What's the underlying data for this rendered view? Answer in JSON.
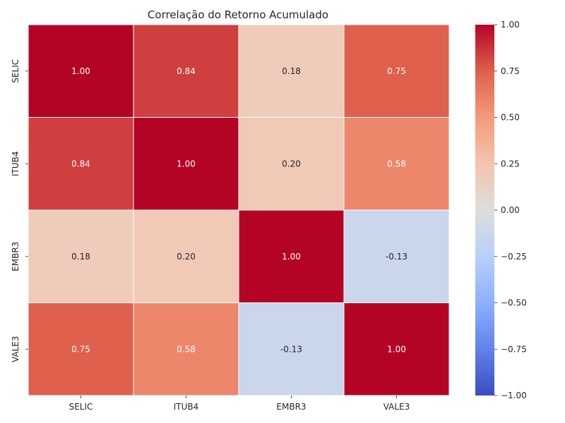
{
  "chart_data": {
    "type": "heatmap",
    "title": "Correlação do Retorno Acumulado",
    "rows": [
      "SELIC",
      "ITUB4",
      "EMBR3",
      "VALE3"
    ],
    "columns": [
      "SELIC",
      "ITUB4",
      "EMBR3",
      "VALE3"
    ],
    "values": [
      [
        1.0,
        0.84,
        0.18,
        0.75
      ],
      [
        0.84,
        1.0,
        0.2,
        0.58
      ],
      [
        0.18,
        0.2,
        1.0,
        -0.13
      ],
      [
        0.75,
        0.58,
        -0.13,
        1.0
      ]
    ],
    "value_format": "2 decimals",
    "colormap": "coolwarm",
    "vmin": -1.0,
    "vmax": 1.0,
    "colorbar": {
      "position": "right",
      "ticks": [
        1.0,
        0.75,
        0.5,
        0.25,
        0.0,
        -0.25,
        -0.5,
        -0.75,
        -1.0
      ],
      "tick_labels": [
        "1.00",
        "0.75",
        "0.50",
        "0.25",
        "0.00",
        "−0.25",
        "−0.50",
        "−0.75",
        "−1.00"
      ]
    },
    "grid": false,
    "cell_border_color": "#ffffff",
    "text_dark": "#262626",
    "text_light": "#ffffff"
  }
}
